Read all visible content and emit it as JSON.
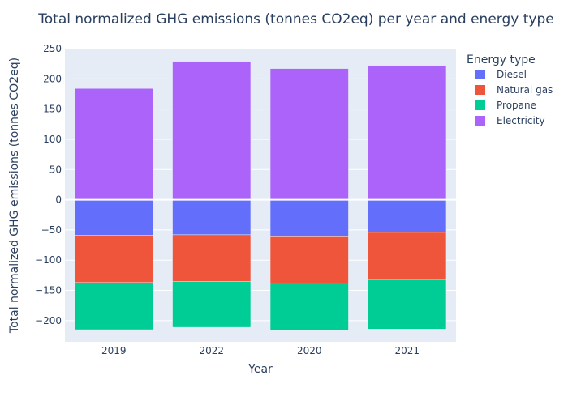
{
  "chart_data": {
    "type": "bar",
    "barmode": "relative",
    "title": "Total normalized GHG emissions (tonnes CO2eq) per year and energy type",
    "xlabel": "Year",
    "ylabel": "Total normalized GHG emissions (tonnes CO2eq)",
    "categories": [
      "2019",
      "2022",
      "2020",
      "2021"
    ],
    "ylim": [
      -235,
      250
    ],
    "yticks": [
      -200,
      -150,
      -100,
      -50,
      0,
      50,
      100,
      150,
      200,
      250
    ],
    "legend_title": "Energy type",
    "legend_position": "right",
    "grid": true,
    "series": [
      {
        "name": "Diesel",
        "color": "#636efa",
        "values": [
          -59,
          -58,
          -60,
          -54
        ]
      },
      {
        "name": "Natural gas",
        "color": "#ef553b",
        "values": [
          -78,
          -77,
          -78,
          -78
        ]
      },
      {
        "name": "Propane",
        "color": "#00cc96",
        "values": [
          -78,
          -76,
          -78,
          -82
        ]
      },
      {
        "name": "Electricity",
        "color": "#ab63fa",
        "values": [
          184,
          229,
          217,
          222
        ]
      }
    ]
  }
}
